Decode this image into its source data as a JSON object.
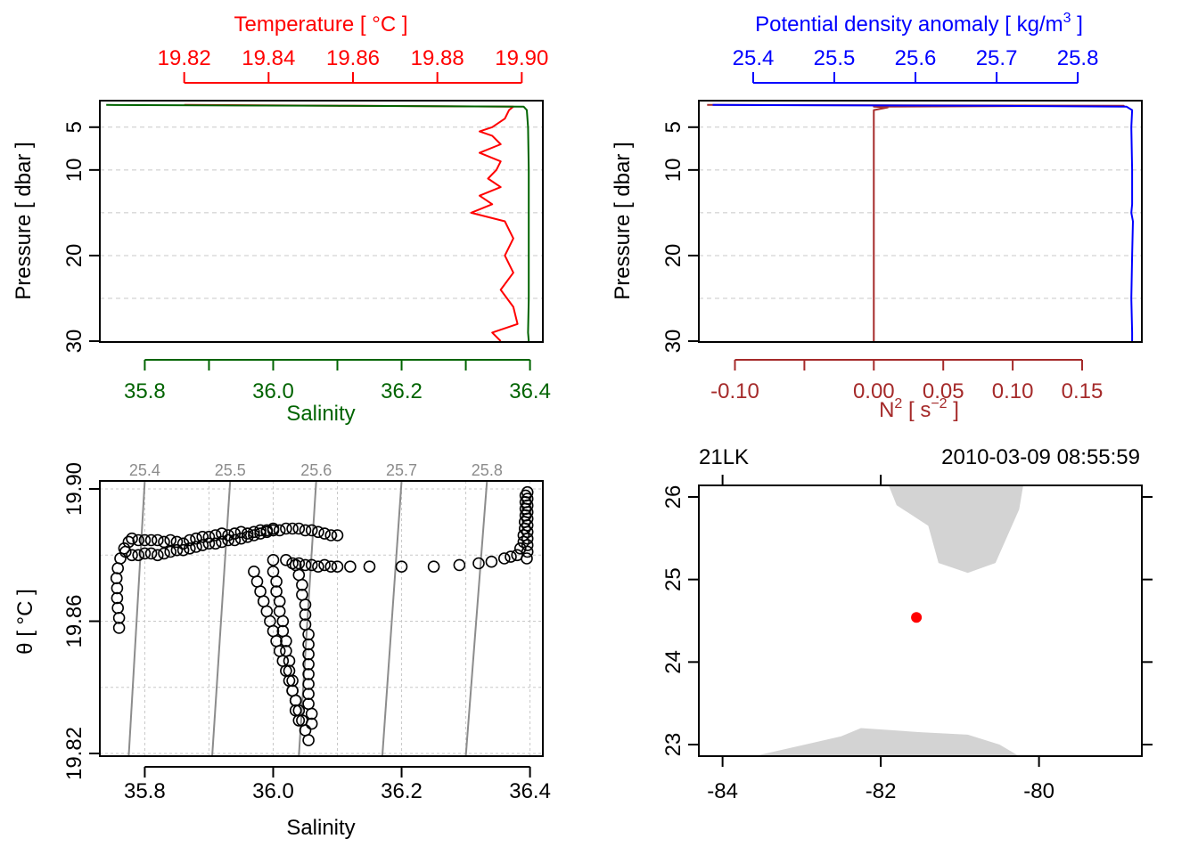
{
  "colors": {
    "temperature": "#ff0000",
    "salinity": "#006400",
    "density": "#0000ff",
    "n2": "#a52a2a",
    "density_n2_overlap": "#7f1d7a",
    "ts_points": "#000000",
    "isopycnal": "#8c8c8c",
    "grid": "#c8c8c8",
    "land": "#d3d3d3",
    "station": "#ff0000"
  },
  "chart_data": [
    {
      "type": "line",
      "panel": "salinity-temperature-profile",
      "title": "",
      "top_axis": {
        "label": "Temperature [ °C ]",
        "range": [
          19.8,
          19.905
        ],
        "ticks": [
          19.82,
          19.84,
          19.86,
          19.88,
          19.9
        ],
        "tick_labels": [
          "19.82",
          "19.84",
          "19.86",
          "19.88",
          "19.90"
        ]
      },
      "bottom_axis": {
        "label": "Salinity",
        "range": [
          35.73,
          36.42
        ],
        "ticks": [
          35.8,
          36.0,
          36.2,
          36.4
        ],
        "minor_ticks": [
          35.9,
          36.1,
          36.3
        ],
        "tick_labels": [
          "35.8",
          "36.0",
          "36.2",
          "36.4"
        ]
      },
      "y_axis": {
        "label": "Pressure [ dbar ]",
        "range": [
          30.1,
          1.9
        ],
        "reversed": true,
        "ticks": [
          5,
          10,
          20,
          30
        ],
        "tick_labels": [
          "5",
          "10",
          "20",
          "30"
        ],
        "grid_lines": [
          5,
          10,
          15,
          20,
          25
        ]
      },
      "grid": true,
      "series": [
        {
          "name": "temperature",
          "axis": "top",
          "pressure": [
            2.4,
            2.5,
            2.6,
            3,
            4,
            5,
            5.5,
            6,
            7,
            8,
            9,
            10,
            11,
            12,
            13,
            14,
            15,
            16,
            17,
            18,
            20,
            22,
            24,
            26,
            28,
            29,
            30
          ],
          "temperature": [
            19.82,
            19.86,
            19.898,
            19.897,
            19.896,
            19.893,
            19.89,
            19.893,
            19.895,
            19.89,
            19.895,
            19.894,
            19.892,
            19.895,
            19.89,
            19.893,
            19.888,
            19.896,
            19.897,
            19.898,
            19.896,
            19.898,
            19.895,
            19.898,
            19.899,
            19.893,
            19.895
          ]
        },
        {
          "name": "salinity",
          "axis": "bottom",
          "pressure": [
            2.4,
            2.5,
            2.6,
            3,
            5,
            10,
            15,
            20,
            25,
            29,
            30
          ],
          "salinity": [
            35.74,
            36.1,
            36.39,
            36.395,
            36.397,
            36.398,
            36.398,
            36.398,
            36.398,
            36.397,
            36.398
          ]
        }
      ]
    },
    {
      "type": "line",
      "panel": "density-n2-profile",
      "title": "",
      "top_axis": {
        "label": "Potential density anomaly [ kg/m",
        "label_superscript": "3",
        "label_suffix": " ]",
        "range": [
          25.333,
          25.879
        ],
        "ticks": [
          25.4,
          25.5,
          25.6,
          25.7,
          25.8
        ],
        "tick_labels": [
          "25.4",
          "25.5",
          "25.6",
          "25.7",
          "25.8"
        ]
      },
      "bottom_axis": {
        "label": "N",
        "label_superscript": "2",
        "label_mid": " [ s",
        "label_superscript2": "−2",
        "label_suffix": " ]",
        "range": [
          -0.126,
          0.193
        ],
        "ticks": [
          -0.1,
          0.0,
          0.05,
          0.1,
          0.15
        ],
        "minor_ticks": [
          -0.05
        ],
        "tick_labels": [
          "-0.10",
          "0.00",
          "0.05",
          "0.10",
          "0.15"
        ]
      },
      "y_axis": {
        "label": "Pressure [ dbar ]",
        "range": [
          30.1,
          1.9
        ],
        "reversed": true,
        "ticks": [
          5,
          10,
          20,
          30
        ],
        "tick_labels": [
          "5",
          "10",
          "20",
          "30"
        ],
        "grid_lines": [
          5,
          10,
          15,
          20,
          25
        ]
      },
      "grid": true,
      "series": [
        {
          "name": "density",
          "pressure": [
            2.4,
            2.5,
            2.6,
            3,
            5,
            10,
            14,
            15,
            16,
            20,
            25,
            29,
            30
          ],
          "density": [
            25.35,
            25.7,
            25.86,
            25.867,
            25.866,
            25.867,
            25.867,
            25.866,
            25.868,
            25.867,
            25.866,
            25.867,
            25.867
          ]
        },
        {
          "name": "N2",
          "pressure": [
            2.4,
            2.5,
            2.6,
            2.7,
            3,
            5,
            10,
            20,
            30
          ],
          "n2": [
            -0.12,
            0.18,
            0.0,
            0.01,
            0.0,
            0.0,
            0.0,
            0.0,
            0.0
          ]
        }
      ]
    },
    {
      "type": "scatter",
      "panel": "ts-diagram",
      "title": "",
      "xlabel": "Salinity",
      "ylabel": "θ [ °C ]",
      "xlim": [
        35.73,
        36.42
      ],
      "ylim": [
        19.82,
        19.9
      ],
      "x_ticks": [
        35.8,
        36.0,
        36.2,
        36.4
      ],
      "x_tick_labels": [
        "35.8",
        "36.0",
        "36.2",
        "36.4"
      ],
      "y_ticks": [
        19.82,
        19.86,
        19.9
      ],
      "y_tick_labels": [
        "19.82",
        "19.86",
        "19.90"
      ],
      "grid_x": [
        35.8,
        35.9,
        36.0,
        36.1,
        36.2,
        36.3,
        36.4
      ],
      "grid_y": [
        19.82,
        19.84,
        19.86,
        19.88,
        19.9
      ],
      "grid": true,
      "isopycnals": [
        {
          "label": "25.4",
          "x_bottom": 35.775,
          "x_top": 35.8
        },
        {
          "label": "25.5",
          "x_bottom": 35.905,
          "x_top": 35.933
        },
        {
          "label": "25.6",
          "x_bottom": 36.04,
          "x_top": 36.067
        },
        {
          "label": "25.7",
          "x_bottom": 36.17,
          "x_top": 36.2
        },
        {
          "label": "25.8",
          "x_bottom": 36.3,
          "x_top": 36.333
        }
      ],
      "points": [
        [
          35.76,
          19.858
        ],
        [
          35.76,
          19.861
        ],
        [
          35.758,
          19.864
        ],
        [
          35.757,
          19.867
        ],
        [
          35.757,
          19.87
        ],
        [
          35.756,
          19.873
        ],
        [
          35.758,
          19.876
        ],
        [
          35.762,
          19.879
        ],
        [
          35.768,
          19.882
        ],
        [
          35.775,
          19.884
        ],
        [
          35.78,
          19.885
        ],
        [
          35.79,
          19.8845
        ],
        [
          35.8,
          19.8845
        ],
        [
          35.81,
          19.8845
        ],
        [
          35.82,
          19.8845
        ],
        [
          35.83,
          19.884
        ],
        [
          35.84,
          19.8845
        ],
        [
          35.85,
          19.884
        ],
        [
          35.86,
          19.8835
        ],
        [
          35.87,
          19.8845
        ],
        [
          35.88,
          19.885
        ],
        [
          35.89,
          19.8855
        ],
        [
          35.9,
          19.8855
        ],
        [
          35.91,
          19.886
        ],
        [
          35.92,
          19.8865
        ],
        [
          35.93,
          19.886
        ],
        [
          35.94,
          19.8865
        ],
        [
          35.95,
          19.887
        ],
        [
          35.96,
          19.8865
        ],
        [
          35.97,
          19.887
        ],
        [
          35.98,
          19.8875
        ],
        [
          35.99,
          19.8875
        ],
        [
          36.0,
          19.888
        ],
        [
          36.01,
          19.8875
        ],
        [
          36.02,
          19.888
        ],
        [
          36.03,
          19.888
        ],
        [
          36.04,
          19.888
        ],
        [
          36.05,
          19.8875
        ],
        [
          36.06,
          19.8875
        ],
        [
          36.07,
          19.887
        ],
        [
          36.08,
          19.8865
        ],
        [
          36.09,
          19.886
        ],
        [
          36.1,
          19.886
        ],
        [
          35.77,
          19.881
        ],
        [
          35.78,
          19.88
        ],
        [
          35.79,
          19.88
        ],
        [
          35.8,
          19.8805
        ],
        [
          35.81,
          19.8805
        ],
        [
          35.82,
          19.88
        ],
        [
          35.83,
          19.8805
        ],
        [
          35.84,
          19.881
        ],
        [
          35.85,
          19.8815
        ],
        [
          35.86,
          19.8815
        ],
        [
          35.87,
          19.882
        ],
        [
          35.88,
          19.8825
        ],
        [
          35.89,
          19.883
        ],
        [
          35.9,
          19.8835
        ],
        [
          35.91,
          19.8835
        ],
        [
          35.92,
          19.884
        ],
        [
          35.93,
          19.8845
        ],
        [
          35.94,
          19.8845
        ],
        [
          35.95,
          19.885
        ],
        [
          35.96,
          19.8855
        ],
        [
          35.97,
          19.886
        ],
        [
          35.98,
          19.8865
        ],
        [
          35.99,
          19.887
        ],
        [
          36.0,
          19.8875
        ],
        [
          35.97,
          19.875
        ],
        [
          35.975,
          19.872
        ],
        [
          35.98,
          19.869
        ],
        [
          35.985,
          19.866
        ],
        [
          35.99,
          19.863
        ],
        [
          35.995,
          19.86
        ],
        [
          36.0,
          19.857
        ],
        [
          36.005,
          19.854
        ],
        [
          36.01,
          19.851
        ],
        [
          36.015,
          19.848
        ],
        [
          36.02,
          19.845
        ],
        [
          36.025,
          19.842
        ],
        [
          36.03,
          19.839
        ],
        [
          36.035,
          19.836
        ],
        [
          36.04,
          19.833
        ],
        [
          36.045,
          19.83
        ],
        [
          36.05,
          19.827
        ],
        [
          36.055,
          19.824
        ],
        [
          36.0,
          19.8785
        ],
        [
          36.0,
          19.875
        ],
        [
          36.005,
          19.872
        ],
        [
          36.005,
          19.869
        ],
        [
          36.01,
          19.866
        ],
        [
          36.01,
          19.863
        ],
        [
          36.015,
          19.86
        ],
        [
          36.015,
          19.857
        ],
        [
          36.02,
          19.854
        ],
        [
          36.02,
          19.851
        ],
        [
          36.025,
          19.848
        ],
        [
          36.025,
          19.845
        ],
        [
          36.03,
          19.842
        ],
        [
          36.03,
          19.839
        ],
        [
          36.035,
          19.836
        ],
        [
          36.035,
          19.833
        ],
        [
          36.04,
          19.83
        ],
        [
          36.035,
          19.877
        ],
        [
          36.04,
          19.874
        ],
        [
          36.045,
          19.871
        ],
        [
          36.045,
          19.868
        ],
        [
          36.05,
          19.865
        ],
        [
          36.05,
          19.862
        ],
        [
          36.05,
          19.859
        ],
        [
          36.055,
          19.856
        ],
        [
          36.055,
          19.853
        ],
        [
          36.055,
          19.85
        ],
        [
          36.055,
          19.847
        ],
        [
          36.055,
          19.844
        ],
        [
          36.055,
          19.841
        ],
        [
          36.055,
          19.838
        ],
        [
          36.055,
          19.835
        ],
        [
          36.06,
          19.832
        ],
        [
          36.06,
          19.829
        ],
        [
          36.02,
          19.8785
        ],
        [
          36.03,
          19.8775
        ],
        [
          36.04,
          19.8775
        ],
        [
          36.05,
          19.877
        ],
        [
          36.06,
          19.877
        ],
        [
          36.07,
          19.8765
        ],
        [
          36.08,
          19.877
        ],
        [
          36.09,
          19.8765
        ],
        [
          36.1,
          19.8765
        ],
        [
          36.12,
          19.8765
        ],
        [
          36.15,
          19.8765
        ],
        [
          36.2,
          19.8765
        ],
        [
          36.25,
          19.8765
        ],
        [
          36.29,
          19.877
        ],
        [
          36.32,
          19.8775
        ],
        [
          36.34,
          19.878
        ],
        [
          36.36,
          19.879
        ],
        [
          36.37,
          19.8795
        ],
        [
          36.38,
          19.88
        ],
        [
          36.385,
          19.882
        ],
        [
          36.39,
          19.884
        ],
        [
          36.39,
          19.886
        ],
        [
          36.392,
          19.888
        ],
        [
          36.392,
          19.89
        ],
        [
          36.393,
          19.892
        ],
        [
          36.393,
          19.894
        ],
        [
          36.393,
          19.896
        ],
        [
          36.393,
          19.898
        ],
        [
          36.396,
          19.899
        ],
        [
          36.396,
          19.897
        ],
        [
          36.396,
          19.895
        ],
        [
          36.396,
          19.893
        ],
        [
          36.396,
          19.891
        ],
        [
          36.396,
          19.889
        ],
        [
          36.396,
          19.887
        ],
        [
          36.396,
          19.885
        ],
        [
          36.396,
          19.883
        ],
        [
          36.396,
          19.881
        ],
        [
          36.395,
          19.879
        ]
      ]
    },
    {
      "type": "map",
      "panel": "station-map",
      "title": "",
      "label_left": "21LK",
      "label_right": "2010-03-09 08:55:59",
      "xlim": [
        -84.3,
        -78.7
      ],
      "ylim": [
        22.86,
        26.14
      ],
      "x_ticks": [
        -84,
        -82,
        -80
      ],
      "x_tick_labels": [
        "-84",
        "-82",
        "-80"
      ],
      "y_ticks": [
        23,
        24,
        25,
        26
      ],
      "y_tick_labels": [
        "23",
        "24",
        "25",
        "26"
      ],
      "top_ticks": [
        -84,
        -82
      ],
      "station": {
        "lon": -81.55,
        "lat": 24.54
      },
      "land": [
        [
          [
            -81.9,
            26.14
          ],
          [
            -81.8,
            25.9
          ],
          [
            -81.4,
            25.65
          ],
          [
            -81.27,
            25.2
          ],
          [
            -80.9,
            25.08
          ],
          [
            -80.55,
            25.2
          ],
          [
            -80.25,
            25.85
          ],
          [
            -80.2,
            26.14
          ]
        ],
        [
          [
            -83.6,
            22.86
          ],
          [
            -82.5,
            23.1
          ],
          [
            -82.25,
            23.2
          ],
          [
            -81.5,
            23.15
          ],
          [
            -80.9,
            23.12
          ],
          [
            -80.5,
            23.0
          ],
          [
            -80.25,
            22.86
          ]
        ]
      ]
    }
  ]
}
